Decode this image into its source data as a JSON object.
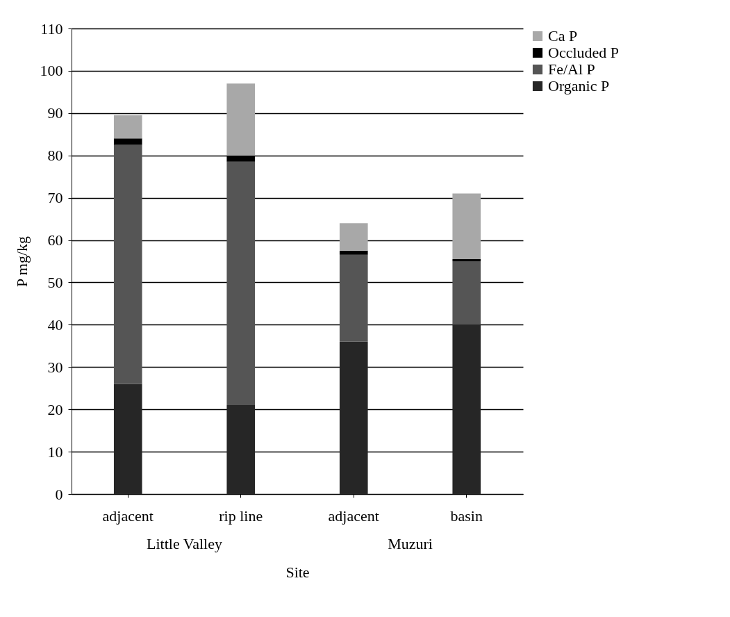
{
  "chart_data": {
    "type": "bar",
    "stacked": true,
    "xlabel": "Site",
    "ylabel": "P mg/kg",
    "categories": [
      "adjacent",
      "rip line",
      "adjacent",
      "basin"
    ],
    "series": [
      {
        "name": "Organic P",
        "color": "#262626",
        "values": [
          26,
          21,
          36,
          40
        ]
      },
      {
        "name": "Fe/Al P",
        "color": "#555555",
        "values": [
          56.5,
          57.5,
          20.5,
          15
        ]
      },
      {
        "name": "Occluded P",
        "color": "#000000",
        "values": [
          1.5,
          1.5,
          1,
          0.5
        ]
      },
      {
        "name": "Ca P",
        "color": "#a8a8a8",
        "values": [
          5.5,
          17,
          6.5,
          15.5
        ]
      }
    ],
    "ylim": [
      0,
      110
    ],
    "yticks": [
      0,
      10,
      20,
      30,
      40,
      50,
      60,
      70,
      80,
      90,
      100,
      110
    ],
    "grid": "y",
    "legend": "right",
    "annotations": [
      "Little Valley",
      "Muzuri"
    ]
  }
}
